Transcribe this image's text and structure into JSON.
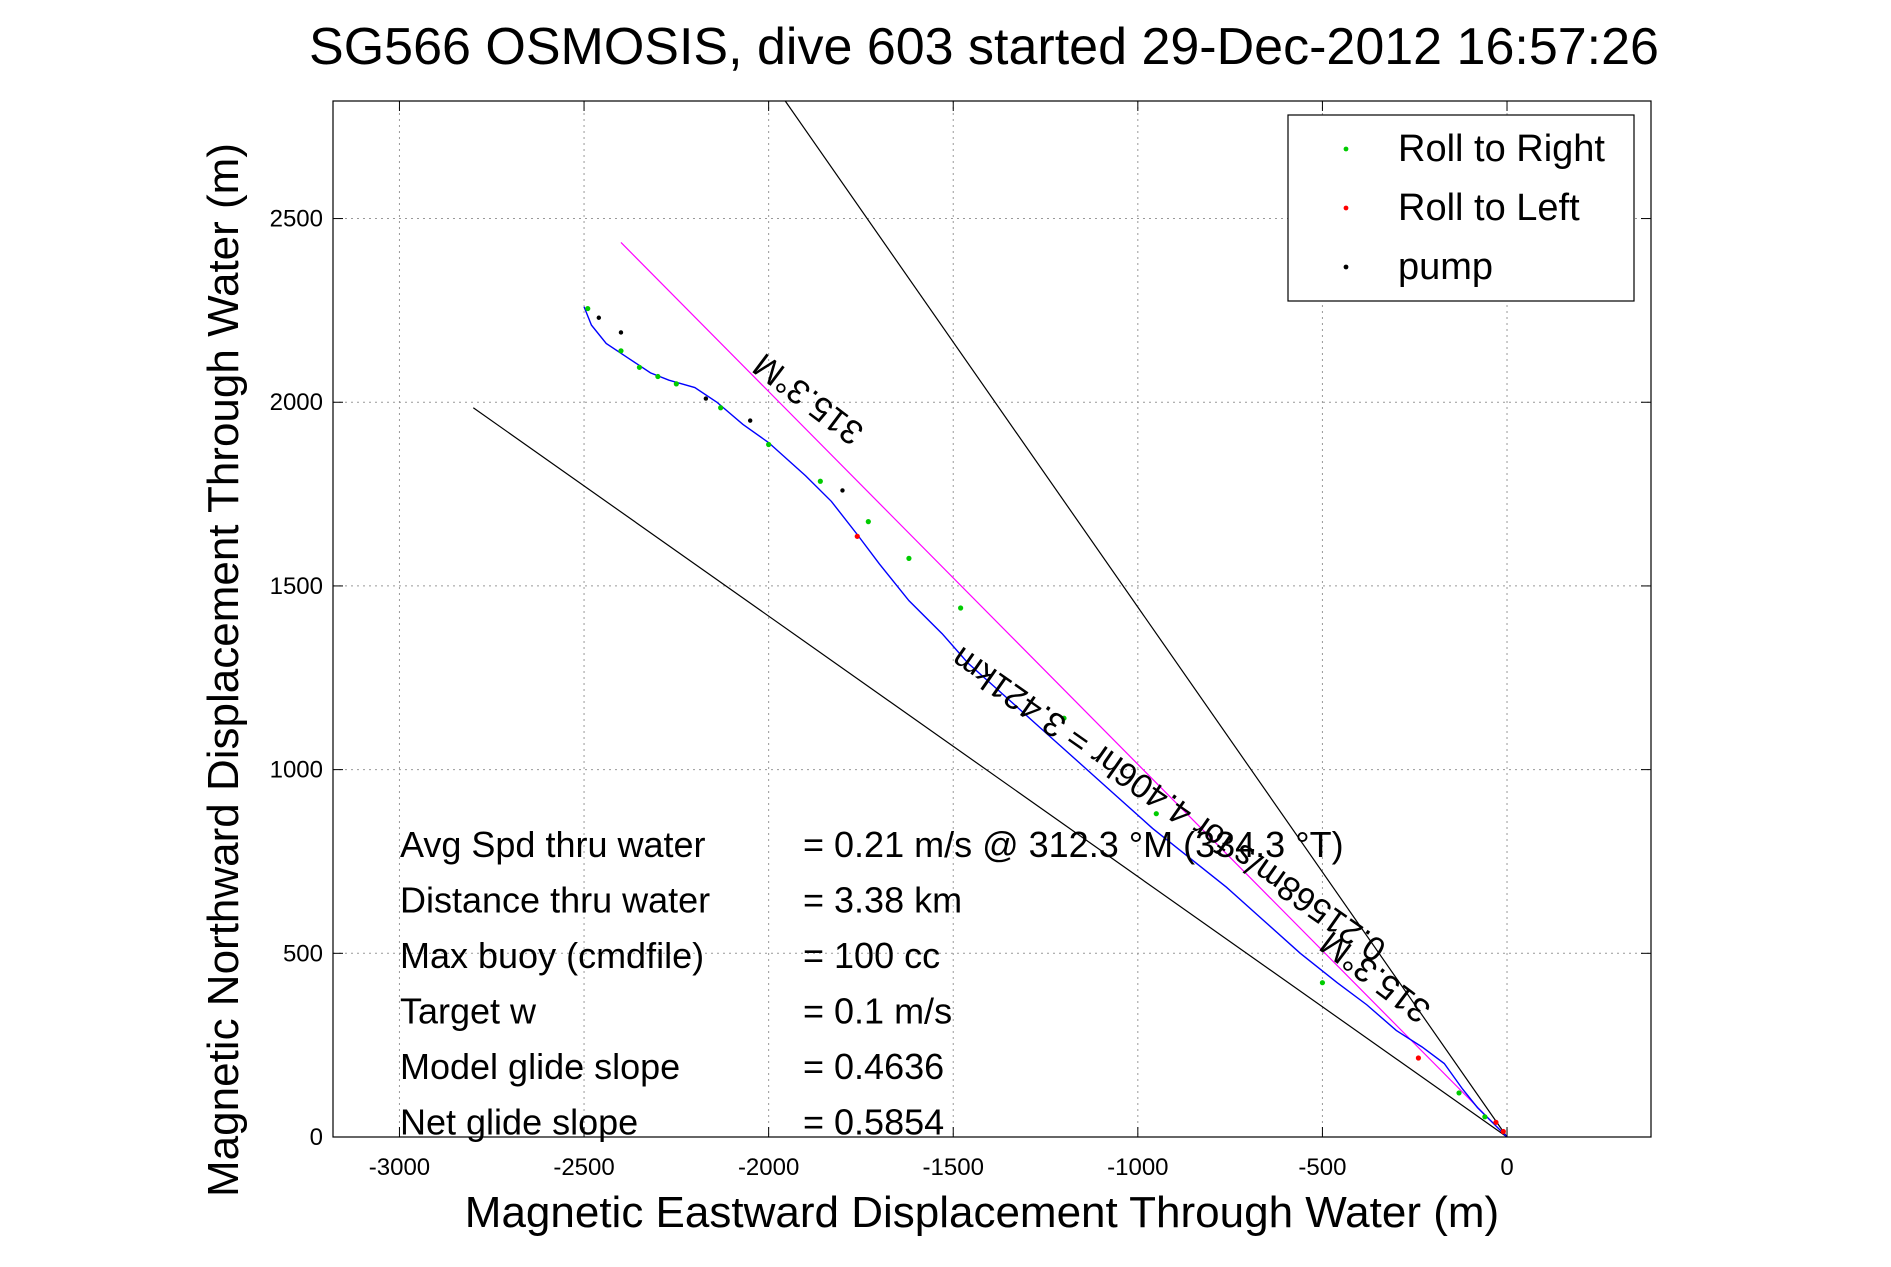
{
  "chart_data": {
    "type": "line",
    "title": "SG566 OSMOSIS, dive 603 started 29-Dec-2012 16:57:26",
    "xlabel": "Magnetic Eastward Displacement Through Water (m)",
    "ylabel": "Magnetic Northward Displacement Through Water (m)",
    "xlim": [
      -3180,
      390
    ],
    "ylim": [
      0,
      2820
    ],
    "xticks": [
      -3000,
      -2500,
      -2000,
      -1500,
      -1000,
      -500,
      0
    ],
    "yticks": [
      0,
      500,
      1000,
      1500,
      2000,
      2500
    ],
    "grid": true,
    "legend": {
      "placement": "top-right",
      "entries": [
        {
          "label": "Roll to Right",
          "color": "#00cc00"
        },
        {
          "label": "Roll to Left",
          "color": "#ff0000"
        },
        {
          "label": "pump",
          "color": "#000000"
        }
      ]
    },
    "track": {
      "color": "#0000ff",
      "x": [
        0,
        -40,
        -80,
        -120,
        -170,
        -230,
        -300,
        -380,
        -460,
        -560,
        -660,
        -760,
        -860,
        -960,
        -1060,
        -1160,
        -1260,
        -1360,
        -1460,
        -1530,
        -1620,
        -1700,
        -1760,
        -1830,
        -1900,
        -2000,
        -2070,
        -2140,
        -2200,
        -2270,
        -2320,
        -2380,
        -2440,
        -2480,
        -2500
      ],
      "y": [
        0,
        40,
        80,
        130,
        200,
        245,
        290,
        360,
        420,
        500,
        590,
        680,
        760,
        840,
        930,
        1020,
        1110,
        1200,
        1290,
        1370,
        1460,
        1560,
        1640,
        1730,
        1800,
        1890,
        1940,
        2000,
        2040,
        2060,
        2080,
        2120,
        2160,
        2210,
        2260
      ]
    },
    "roll_right_points": {
      "x": [
        -2490,
        -2400,
        -2350,
        -2300,
        -2250,
        -2130,
        -2000,
        -1860,
        -1730,
        -1620,
        -1480,
        -1200,
        -950,
        -500,
        -130,
        -60
      ],
      "y": [
        2255,
        2140,
        2095,
        2070,
        2050,
        1985,
        1885,
        1785,
        1675,
        1575,
        1440,
        1140,
        880,
        420,
        120,
        55
      ]
    },
    "roll_left_points": {
      "x": [
        -1760,
        -240,
        -30,
        -10
      ],
      "y": [
        1635,
        215,
        40,
        15
      ]
    },
    "pump_points": {
      "x": [
        -2460,
        -2400,
        -2050,
        -1800,
        -2170
      ],
      "y": [
        2230,
        2190,
        1950,
        1760,
        2010
      ]
    },
    "reference_lines": [
      {
        "color": "#000000",
        "x": [
          0,
          -1955
        ],
        "y": [
          0,
          2820
        ]
      },
      {
        "color": "#000000",
        "x": [
          0,
          -2800
        ],
        "y": [
          0,
          1985
        ]
      },
      {
        "color": "#ff00ff",
        "x": [
          0,
          -2400
        ],
        "y": [
          0,
          2435
        ]
      }
    ],
    "annotations": {
      "upper_heading": "315.3°M",
      "lower_heading": "315.3°M",
      "current_label": "0.21568m/s for 4.406hr = 3.421km"
    },
    "stats": [
      {
        "label": "Avg Spd thru water",
        "value": "=  0.21 m/s @ 312.3 °M (334.3 °T)"
      },
      {
        "label": "Distance thru water",
        "value": "=  3.38 km"
      },
      {
        "label": "Max buoy (cmdfile)",
        "value": "= 100 cc"
      },
      {
        "label": "Target w",
        "value": "= 0.1 m/s"
      },
      {
        "label": "Model glide slope",
        "value": "= 0.4636"
      },
      {
        "label": "Net glide slope",
        "value": "= 0.5854"
      }
    ]
  }
}
